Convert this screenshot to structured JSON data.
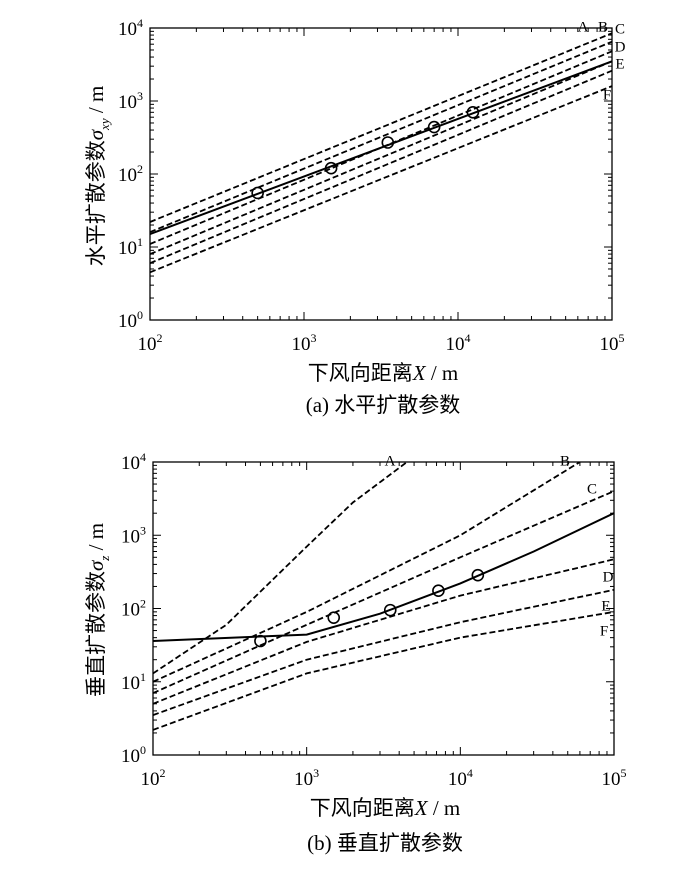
{
  "chart_data": [
    {
      "type": "line",
      "caption": "(a) 水平扩散参数",
      "xlabel": "下风向距离X / m",
      "ylabel": "水平扩散参数σxy / m",
      "ylabel_parts": {
        "text": "水平扩散参数",
        "symbol": "σ",
        "subscript": "xy",
        "unit": " / m"
      },
      "xlabel_parts": {
        "text": "下风向距离",
        "symbol": "X",
        "unit": " / m"
      },
      "xscale": "log",
      "yscale": "log",
      "xlim": [
        100,
        100000
      ],
      "ylim": [
        1,
        10000
      ],
      "xticks": [
        {
          "base": "10",
          "exp": "2"
        },
        {
          "base": "10",
          "exp": "3"
        },
        {
          "base": "10",
          "exp": "4"
        },
        {
          "base": "10",
          "exp": "5"
        }
      ],
      "yticks": [
        {
          "base": "10",
          "exp": "0"
        },
        {
          "base": "10",
          "exp": "1"
        },
        {
          "base": "10",
          "exp": "2"
        },
        {
          "base": "10",
          "exp": "3"
        },
        {
          "base": "10",
          "exp": "4"
        }
      ],
      "series": [
        {
          "name": "A",
          "style": "dashed",
          "x": [
            100,
            100000
          ],
          "y": [
            22,
            8500
          ]
        },
        {
          "name": "B",
          "style": "dashed",
          "x": [
            100,
            100000
          ],
          "y": [
            16,
            6500
          ]
        },
        {
          "name": "C",
          "style": "dashed",
          "x": [
            100,
            100000
          ],
          "y": [
            11,
            4800
          ]
        },
        {
          "name": "D",
          "style": "dashed",
          "x": [
            100,
            100000
          ],
          "y": [
            8,
            3500
          ]
        },
        {
          "name": "E",
          "style": "dashed",
          "x": [
            100,
            100000
          ],
          "y": [
            6,
            2600
          ]
        },
        {
          "name": "F",
          "style": "dashed",
          "x": [
            100,
            100000
          ],
          "y": [
            4.5,
            1600
          ]
        },
        {
          "style": "solid",
          "x": [
            100,
            100000
          ],
          "y": [
            15,
            3500
          ]
        }
      ],
      "observations": {
        "x": [
          500,
          1500,
          3500,
          7000,
          12500
        ],
        "y": [
          55,
          120,
          270,
          440,
          700
        ]
      }
    },
    {
      "type": "line",
      "caption": "(b) 垂直扩散参数",
      "xlabel": "下风向距离X / m",
      "ylabel": "垂直扩散参数σz / m",
      "ylabel_parts": {
        "text": "垂直扩散参数",
        "symbol": "σ",
        "subscript": "z",
        "unit": " / m"
      },
      "xlabel_parts": {
        "text": "下风向距离",
        "symbol": "X",
        "unit": " / m"
      },
      "xscale": "log",
      "yscale": "log",
      "xlim": [
        100,
        100000
      ],
      "ylim": [
        1,
        10000
      ],
      "xticks": [
        {
          "base": "10",
          "exp": "2"
        },
        {
          "base": "10",
          "exp": "3"
        },
        {
          "base": "10",
          "exp": "4"
        },
        {
          "base": "10",
          "exp": "5"
        }
      ],
      "yticks": [
        {
          "base": "10",
          "exp": "0"
        },
        {
          "base": "10",
          "exp": "1"
        },
        {
          "base": "10",
          "exp": "2"
        },
        {
          "base": "10",
          "exp": "3"
        },
        {
          "base": "10",
          "exp": "4"
        }
      ],
      "series": [
        {
          "name": "A",
          "style": "dashed",
          "x": [
            100,
            300,
            1000,
            2000,
            4500
          ],
          "y": [
            13,
            60,
            700,
            2800,
            10000
          ]
        },
        {
          "name": "B",
          "style": "dashed",
          "x": [
            100,
            1000,
            10000,
            60000
          ],
          "y": [
            10,
            90,
            1000,
            10000
          ]
        },
        {
          "name": "C",
          "style": "dashed",
          "x": [
            100,
            1000,
            10000,
            100000
          ],
          "y": [
            7,
            60,
            500,
            4000
          ]
        },
        {
          "name": "D",
          "style": "dashed",
          "x": [
            100,
            1000,
            10000,
            100000
          ],
          "y": [
            5,
            35,
            150,
            470
          ]
        },
        {
          "name": "E",
          "style": "dashed",
          "x": [
            100,
            1000,
            10000,
            100000
          ],
          "y": [
            3.5,
            20,
            65,
            180
          ]
        },
        {
          "name": "F",
          "style": "dashed",
          "x": [
            100,
            1000,
            10000,
            100000
          ],
          "y": [
            2.2,
            13,
            40,
            90
          ]
        },
        {
          "style": "solid",
          "x": [
            100,
            1000,
            3000,
            10000,
            30000,
            100000
          ],
          "y": [
            36,
            44,
            85,
            220,
            600,
            2000
          ]
        }
      ],
      "observations": {
        "x": [
          500,
          1500,
          3500,
          7200,
          13000
        ],
        "y": [
          36,
          75,
          95,
          175,
          285
        ]
      }
    }
  ]
}
